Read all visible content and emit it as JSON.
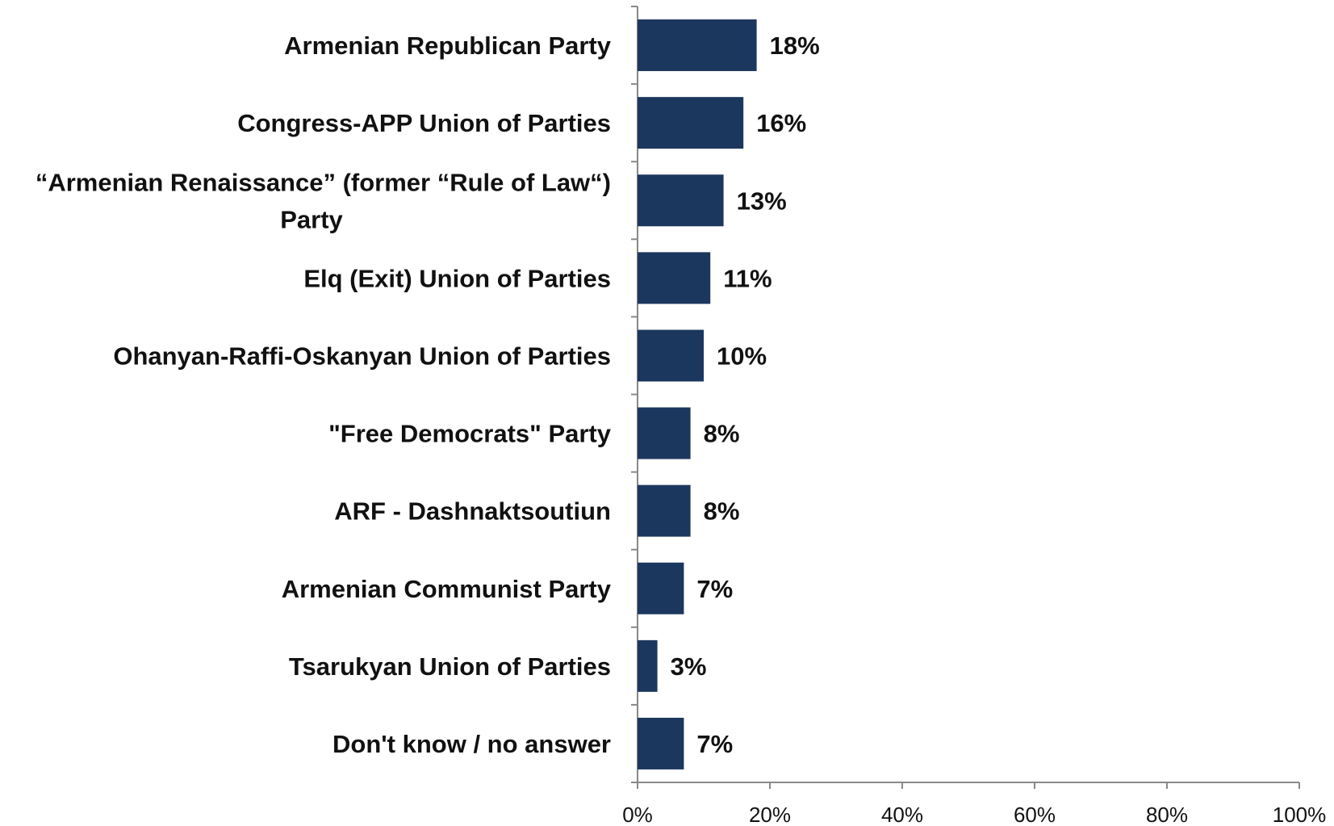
{
  "chart_data": {
    "type": "bar",
    "orientation": "horizontal",
    "categories": [
      [
        "Armenian Republican Party"
      ],
      [
        "Congress-APP Union of Parties"
      ],
      [
        "“Armenian Renaissance” (former “Rule of Law“)",
        "Party"
      ],
      [
        "Elq (Exit)  Union of Parties"
      ],
      [
        "Ohanyan-Raffi-Oskanyan Union of Parties"
      ],
      [
        "\"Free Democrats\" Party"
      ],
      [
        "ARF -  Dashnaktsoutiun"
      ],
      [
        "Armenian Communist Party"
      ],
      [
        "Tsarukyan  Union of Parties"
      ],
      [
        "Don't know / no answer"
      ]
    ],
    "values": [
      18,
      16,
      13,
      11,
      10,
      8,
      8,
      7,
      3,
      7
    ],
    "value_labels": [
      "18%",
      "16%",
      "13%",
      "11%",
      "10%",
      "8%",
      "8%",
      "7%",
      "3%",
      "7%"
    ],
    "x_ticks": [
      "0%",
      "20%",
      "40%",
      "60%",
      "80%",
      "100%"
    ],
    "xlim": [
      0,
      100
    ],
    "bar_color": "#1c375e",
    "axis_color": "#888888",
    "grid": false,
    "legend": "none"
  }
}
